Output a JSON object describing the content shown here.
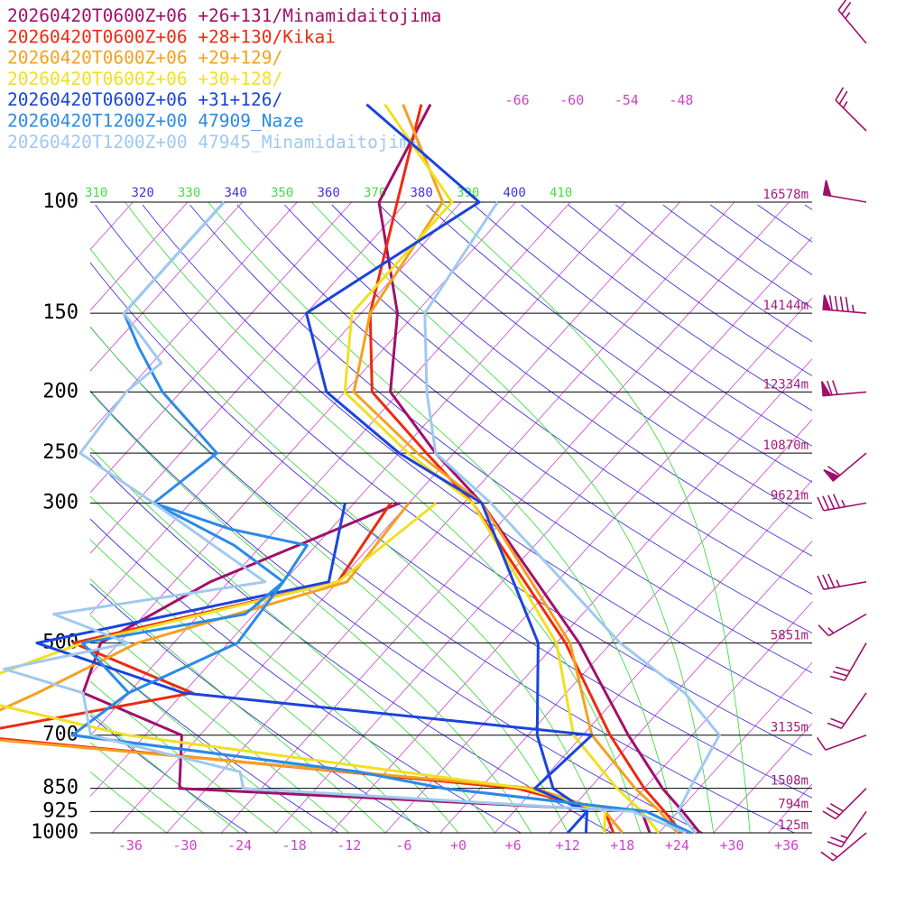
{
  "legend": [
    {
      "label": "20260420T0600Z+06 +26+131/Minamidaitojima",
      "color": "#a0106a"
    },
    {
      "label": "20260420T0600Z+06 +28+130/Kikai",
      "color": "#ee2a10"
    },
    {
      "label": "20260420T0600Z+06 +29+129/",
      "color": "#f5a020"
    },
    {
      "label": "20260420T0600Z+06 +30+128/",
      "color": "#f0e020"
    },
    {
      "label": "20260420T0600Z+06 +31+126/",
      "color": "#1a44dd"
    },
    {
      "label": "20260420T1200Z+00 47909_Naze",
      "color": "#2b8ae6"
    },
    {
      "label": "20260420T1200Z+00 47945_Minamidaitojima",
      "color": "#9fc9f0"
    }
  ],
  "chart_data": {
    "type": "line",
    "title": "",
    "xlabel": "",
    "ylabel": "",
    "pressure_levels": [
      {
        "p": 100,
        "label": "100",
        "height": "16578m"
      },
      {
        "p": 150,
        "label": "150",
        "height": "14144m"
      },
      {
        "p": 200,
        "label": "200",
        "height": "12334m"
      },
      {
        "p": 250,
        "label": "250",
        "height": "10870m"
      },
      {
        "p": 300,
        "label": "300",
        "height": "9621m"
      },
      {
        "p": 500,
        "label": "500",
        "height": "5851m"
      },
      {
        "p": 700,
        "label": "700",
        "height": "3135m"
      },
      {
        "p": 850,
        "label": "850",
        "height": "1508m"
      },
      {
        "p": 925,
        "label": "925",
        "height": "794m"
      },
      {
        "p": 1000,
        "label": "1000",
        "height": "125m"
      }
    ],
    "x_ticks": [
      {
        "v": -36,
        "label": "-36"
      },
      {
        "v": -30,
        "label": "-30"
      },
      {
        "v": -24,
        "label": "-24"
      },
      {
        "v": -18,
        "label": "-18"
      },
      {
        "v": -12,
        "label": "-12"
      },
      {
        "v": -6,
        "label": "-6"
      },
      {
        "v": 0,
        "label": "+0"
      },
      {
        "v": 6,
        "label": "+6"
      },
      {
        "v": 12,
        "label": "+12"
      },
      {
        "v": 18,
        "label": "+18"
      },
      {
        "v": 24,
        "label": "+24"
      },
      {
        "v": 30,
        "label": "+30"
      },
      {
        "v": 36,
        "label": "+36"
      }
    ],
    "isotherm_labels": [
      {
        "v": -66,
        "label": "-66"
      },
      {
        "v": -60,
        "label": "-60"
      },
      {
        "v": -54,
        "label": "-54"
      },
      {
        "v": -48,
        "label": "-48"
      }
    ],
    "theta_labels": [
      {
        "v": 310,
        "label": "310"
      },
      {
        "v": 320,
        "label": "320"
      },
      {
        "v": 330,
        "label": "330"
      },
      {
        "v": 340,
        "label": "340"
      },
      {
        "v": 350,
        "label": "350"
      },
      {
        "v": 360,
        "label": "360"
      },
      {
        "v": 370,
        "label": "370"
      },
      {
        "v": 380,
        "label": "380"
      },
      {
        "v": 390,
        "label": "390"
      },
      {
        "v": 400,
        "label": "400"
      },
      {
        "v": 410,
        "label": "410"
      }
    ],
    "colors": {
      "isotherm": "#cc44cc",
      "dry_adiabat": "#4433dd",
      "moist_adiabat": "#44dd44",
      "isobar": "#000000"
    },
    "series": [
      {
        "name": "20260420T0600Z+06 +26+131/Minamidaitojima",
        "color": "#a0106a",
        "temperature": [
          [
            70,
            -75
          ],
          [
            100,
            -71
          ],
          [
            150,
            -58
          ],
          [
            200,
            -51
          ],
          [
            250,
            -40
          ],
          [
            300,
            -30
          ],
          [
            500,
            -5.5
          ],
          [
            700,
            9
          ],
          [
            850,
            18
          ],
          [
            925,
            22.5
          ],
          [
            1000,
            26.5
          ]
        ],
        "dewpoint": [
          [
            300,
            -39
          ],
          [
            400,
            -52
          ],
          [
            500,
            -58
          ],
          [
            600,
            -55
          ],
          [
            700,
            -40
          ],
          [
            850,
            -35
          ],
          [
            925,
            18
          ],
          [
            1000,
            21
          ]
        ]
      },
      {
        "name": "20260420T0600Z+06 +28+130/Kikai",
        "color": "#ee2a10",
        "temperature": [
          [
            70,
            -76
          ],
          [
            100,
            -69
          ],
          [
            150,
            -61
          ],
          [
            200,
            -53
          ],
          [
            250,
            -41
          ],
          [
            300,
            -31
          ],
          [
            500,
            -7
          ],
          [
            700,
            7
          ],
          [
            850,
            16
          ],
          [
            925,
            20.5
          ],
          [
            1000,
            24.5
          ]
        ],
        "dewpoint": [
          [
            300,
            -40
          ],
          [
            400,
            -38
          ],
          [
            500,
            -61
          ],
          [
            600,
            -43
          ],
          [
            700,
            -64
          ],
          [
            850,
            2
          ],
          [
            925,
            14
          ],
          [
            1000,
            17
          ]
        ]
      },
      {
        "name": "20260420T0600Z+06 +29+129/",
        "color": "#f5a020",
        "temperature": [
          [
            70,
            -78
          ],
          [
            100,
            -64
          ],
          [
            150,
            -61
          ],
          [
            200,
            -55
          ],
          [
            250,
            -42
          ],
          [
            300,
            -30
          ],
          [
            500,
            -6.5
          ],
          [
            700,
            5
          ],
          [
            850,
            15
          ],
          [
            925,
            20
          ],
          [
            1000,
            24
          ]
        ],
        "dewpoint": [
          [
            300,
            -38
          ],
          [
            400,
            -37
          ],
          [
            500,
            -54
          ],
          [
            600,
            -60
          ],
          [
            700,
            -66
          ],
          [
            850,
            4
          ],
          [
            925,
            14
          ],
          [
            1000,
            18
          ]
        ]
      },
      {
        "name": "20260420T0600Z+06 +30+128/",
        "color": "#f0e020",
        "temperature": [
          [
            70,
            -80
          ],
          [
            100,
            -63
          ],
          [
            150,
            -63
          ],
          [
            200,
            -56
          ],
          [
            250,
            -43
          ],
          [
            300,
            -31
          ],
          [
            500,
            -8
          ],
          [
            700,
            3
          ],
          [
            850,
            13
          ],
          [
            925,
            18
          ],
          [
            1000,
            22
          ]
        ],
        "dewpoint": [
          [
            300,
            -35
          ],
          [
            400,
            -38
          ],
          [
            500,
            -60
          ],
          [
            600,
            -70
          ],
          [
            700,
            -46
          ],
          [
            850,
            3
          ],
          [
            925,
            14
          ],
          [
            1000,
            16
          ]
        ]
      },
      {
        "name": "20260420T0600Z+06 +31+126/",
        "color": "#1a44dd",
        "temperature": [
          [
            70,
            -82
          ],
          [
            100,
            -60
          ],
          [
            150,
            -68
          ],
          [
            200,
            -58
          ],
          [
            250,
            -44
          ],
          [
            300,
            -30
          ],
          [
            500,
            -10
          ],
          [
            700,
            -1
          ],
          [
            850,
            6
          ],
          [
            925,
            12
          ],
          [
            1000,
            14
          ]
        ],
        "dewpoint": [
          [
            300,
            -45
          ],
          [
            400,
            -39
          ],
          [
            500,
            -65
          ],
          [
            600,
            -44
          ],
          [
            700,
            5
          ],
          [
            850,
            4
          ],
          [
            925,
            12
          ],
          [
            1000,
            12
          ]
        ]
      },
      {
        "name": "20260420T1200Z+00 47909_Naze",
        "color": "#2b8ae6",
        "temperature": [
          [
            100,
            -88
          ],
          [
            120,
            -88
          ],
          [
            150,
            -88
          ],
          [
            170,
            -83
          ],
          [
            200,
            -76
          ],
          [
            250,
            -64
          ],
          [
            300,
            -66
          ],
          [
            350,
            -53
          ],
          [
            400,
            -44
          ],
          [
            500,
            -43
          ],
          [
            600,
            -50
          ],
          [
            700,
            -52
          ],
          [
            800,
            -17
          ],
          [
            850,
            -6
          ],
          [
            925,
            18.5
          ],
          [
            1000,
            25.5
          ]
        ],
        "dewpoint": [
          [
            300,
            -66
          ],
          [
            330,
            -55
          ],
          [
            350,
            -45
          ],
          [
            400,
            -44
          ],
          [
            450,
            -45
          ],
          [
            500,
            -60
          ],
          [
            600,
            -50
          ],
          [
            700,
            -52
          ],
          [
            800,
            -17
          ],
          [
            850,
            -6
          ],
          [
            925,
            18.5
          ],
          [
            1000,
            25.5
          ]
        ]
      },
      {
        "name": "20260420T1200Z+00 47945_Minamidaitojima",
        "color": "#9fc9f0",
        "temperature": [
          [
            100,
            -58
          ],
          [
            150,
            -55
          ],
          [
            200,
            -47
          ],
          [
            250,
            -40
          ],
          [
            300,
            -29
          ],
          [
            500,
            -1
          ],
          [
            600,
            11
          ],
          [
            700,
            19
          ],
          [
            850,
            21
          ],
          [
            925,
            22
          ],
          [
            1000,
            26
          ]
        ],
        "dewpoint": [
          [
            100,
            -88
          ],
          [
            150,
            -88
          ],
          [
            180,
            -79
          ],
          [
            200,
            -80
          ],
          [
            250,
            -79
          ],
          [
            300,
            -66
          ],
          [
            400,
            -46
          ],
          [
            450,
            -66
          ],
          [
            500,
            -55
          ],
          [
            550,
            -66
          ],
          [
            600,
            -55
          ],
          [
            700,
            -50
          ],
          [
            800,
            -30
          ],
          [
            850,
            -28
          ],
          [
            925,
            17
          ],
          [
            1000,
            25
          ]
        ]
      }
    ],
    "wind_barbs": [
      {
        "p": 50,
        "dir": 320,
        "kt": 25
      },
      {
        "p": 70,
        "dir": 315,
        "kt": 25
      },
      {
        "p": 100,
        "dir": 280,
        "kt": 50
      },
      {
        "p": 150,
        "dir": 275,
        "kt": 95
      },
      {
        "p": 200,
        "dir": 265,
        "kt": 70
      },
      {
        "p": 250,
        "dir": 230,
        "kt": 60
      },
      {
        "p": 300,
        "dir": 260,
        "kt": 45
      },
      {
        "p": 400,
        "dir": 260,
        "kt": 35
      },
      {
        "p": 450,
        "dir": 240,
        "kt": 15
      },
      {
        "p": 500,
        "dir": 210,
        "kt": 30
      },
      {
        "p": 600,
        "dir": 215,
        "kt": 20
      },
      {
        "p": 700,
        "dir": 250,
        "kt": 10
      },
      {
        "p": 850,
        "dir": 225,
        "kt": 30
      },
      {
        "p": 925,
        "dir": 215,
        "kt": 25
      },
      {
        "p": 1000,
        "dir": 230,
        "kt": 15
      }
    ]
  }
}
